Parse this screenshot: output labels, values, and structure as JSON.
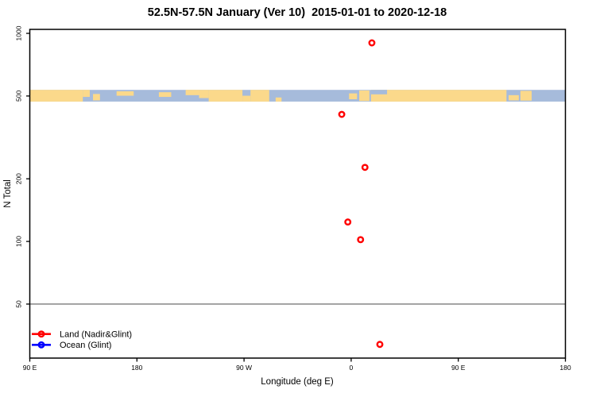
{
  "page": {
    "background": "#ffffff"
  },
  "chart_data": {
    "type": "scatter",
    "title": "52.5N-57.5N January (Ver 10)  2015-01-01 to 2020-12-18",
    "xlabel": "Longitude (deg E)",
    "ylabel": "N Total",
    "x_axis": {
      "range": [
        90,
        540
      ],
      "ticks": [
        90,
        180,
        270,
        360,
        450,
        540
      ],
      "tick_labels": [
        "90 E",
        "180",
        "90 W",
        "0",
        "90 E",
        "180"
      ],
      "note": "longitude axis wraps: left edge 90E eastward through 180, 90W, 0, 90E to 180"
    },
    "y_axis": {
      "scale": "log10",
      "range": [
        27.5,
        1045
      ],
      "ticks": [
        50,
        100,
        200,
        500,
        1000
      ],
      "tick_labels": [
        "50",
        "100",
        "200",
        "500",
        "1000"
      ]
    },
    "reference_line": {
      "value": 50,
      "color": "#7a7a7a"
    },
    "series": [
      {
        "name": "Land (Nadir&Glint)",
        "color": "#ff0000",
        "marker": "open-circle",
        "points": [
          {
            "lon_deg_e": 17,
            "axis_x": 377.4,
            "n": 900
          },
          {
            "lon_deg_e": -8,
            "axis_x": 352.1,
            "n": 408
          },
          {
            "lon_deg_e": 12,
            "axis_x": 371.6,
            "n": 227
          },
          {
            "lon_deg_e": -3,
            "axis_x": 357.2,
            "n": 124
          },
          {
            "lon_deg_e": 8,
            "axis_x": 367.9,
            "n": 102
          },
          {
            "lon_deg_e": 24,
            "axis_x": 384.1,
            "n": 32
          }
        ]
      },
      {
        "name": "Ocean (Glint)",
        "color": "#0000ff",
        "marker": "open-circle",
        "points": []
      }
    ],
    "map_band": {
      "description": "world coastline strip for 52.5N-57.5N drawn across the plot",
      "center_value": 500,
      "n_range": [
        470,
        535
      ],
      "ocean_color": "#a6bbdb",
      "land_color": "#fbd98b",
      "land_segments": [
        [
          0.0,
          0.099,
          0.0,
          1.0
        ],
        [
          0.099,
          0.112,
          0.0,
          0.6
        ],
        [
          0.118,
          0.131,
          0.35,
          0.9
        ],
        [
          0.162,
          0.194,
          0.12,
          0.5
        ],
        [
          0.241,
          0.264,
          0.2,
          0.6
        ],
        [
          0.291,
          0.316,
          0.0,
          0.45
        ],
        [
          0.316,
          0.334,
          0.0,
          0.7
        ],
        [
          0.334,
          0.397,
          0.0,
          1.0
        ],
        [
          0.397,
          0.412,
          0.5,
          1.0
        ],
        [
          0.412,
          0.447,
          0.0,
          1.0
        ],
        [
          0.459,
          0.47,
          0.65,
          1.0
        ],
        [
          0.596,
          0.611,
          0.3,
          0.8
        ],
        [
          0.615,
          0.634,
          0.05,
          0.95
        ],
        [
          0.637,
          0.89,
          0.0,
          1.0
        ],
        [
          0.894,
          0.913,
          0.45,
          0.9
        ],
        [
          0.916,
          0.937,
          0.08,
          0.92
        ]
      ],
      "ocean_patches": [
        [
          0.637,
          0.667,
          0.0,
          0.38
        ]
      ]
    },
    "legend": {
      "position": "bottom-left"
    }
  }
}
